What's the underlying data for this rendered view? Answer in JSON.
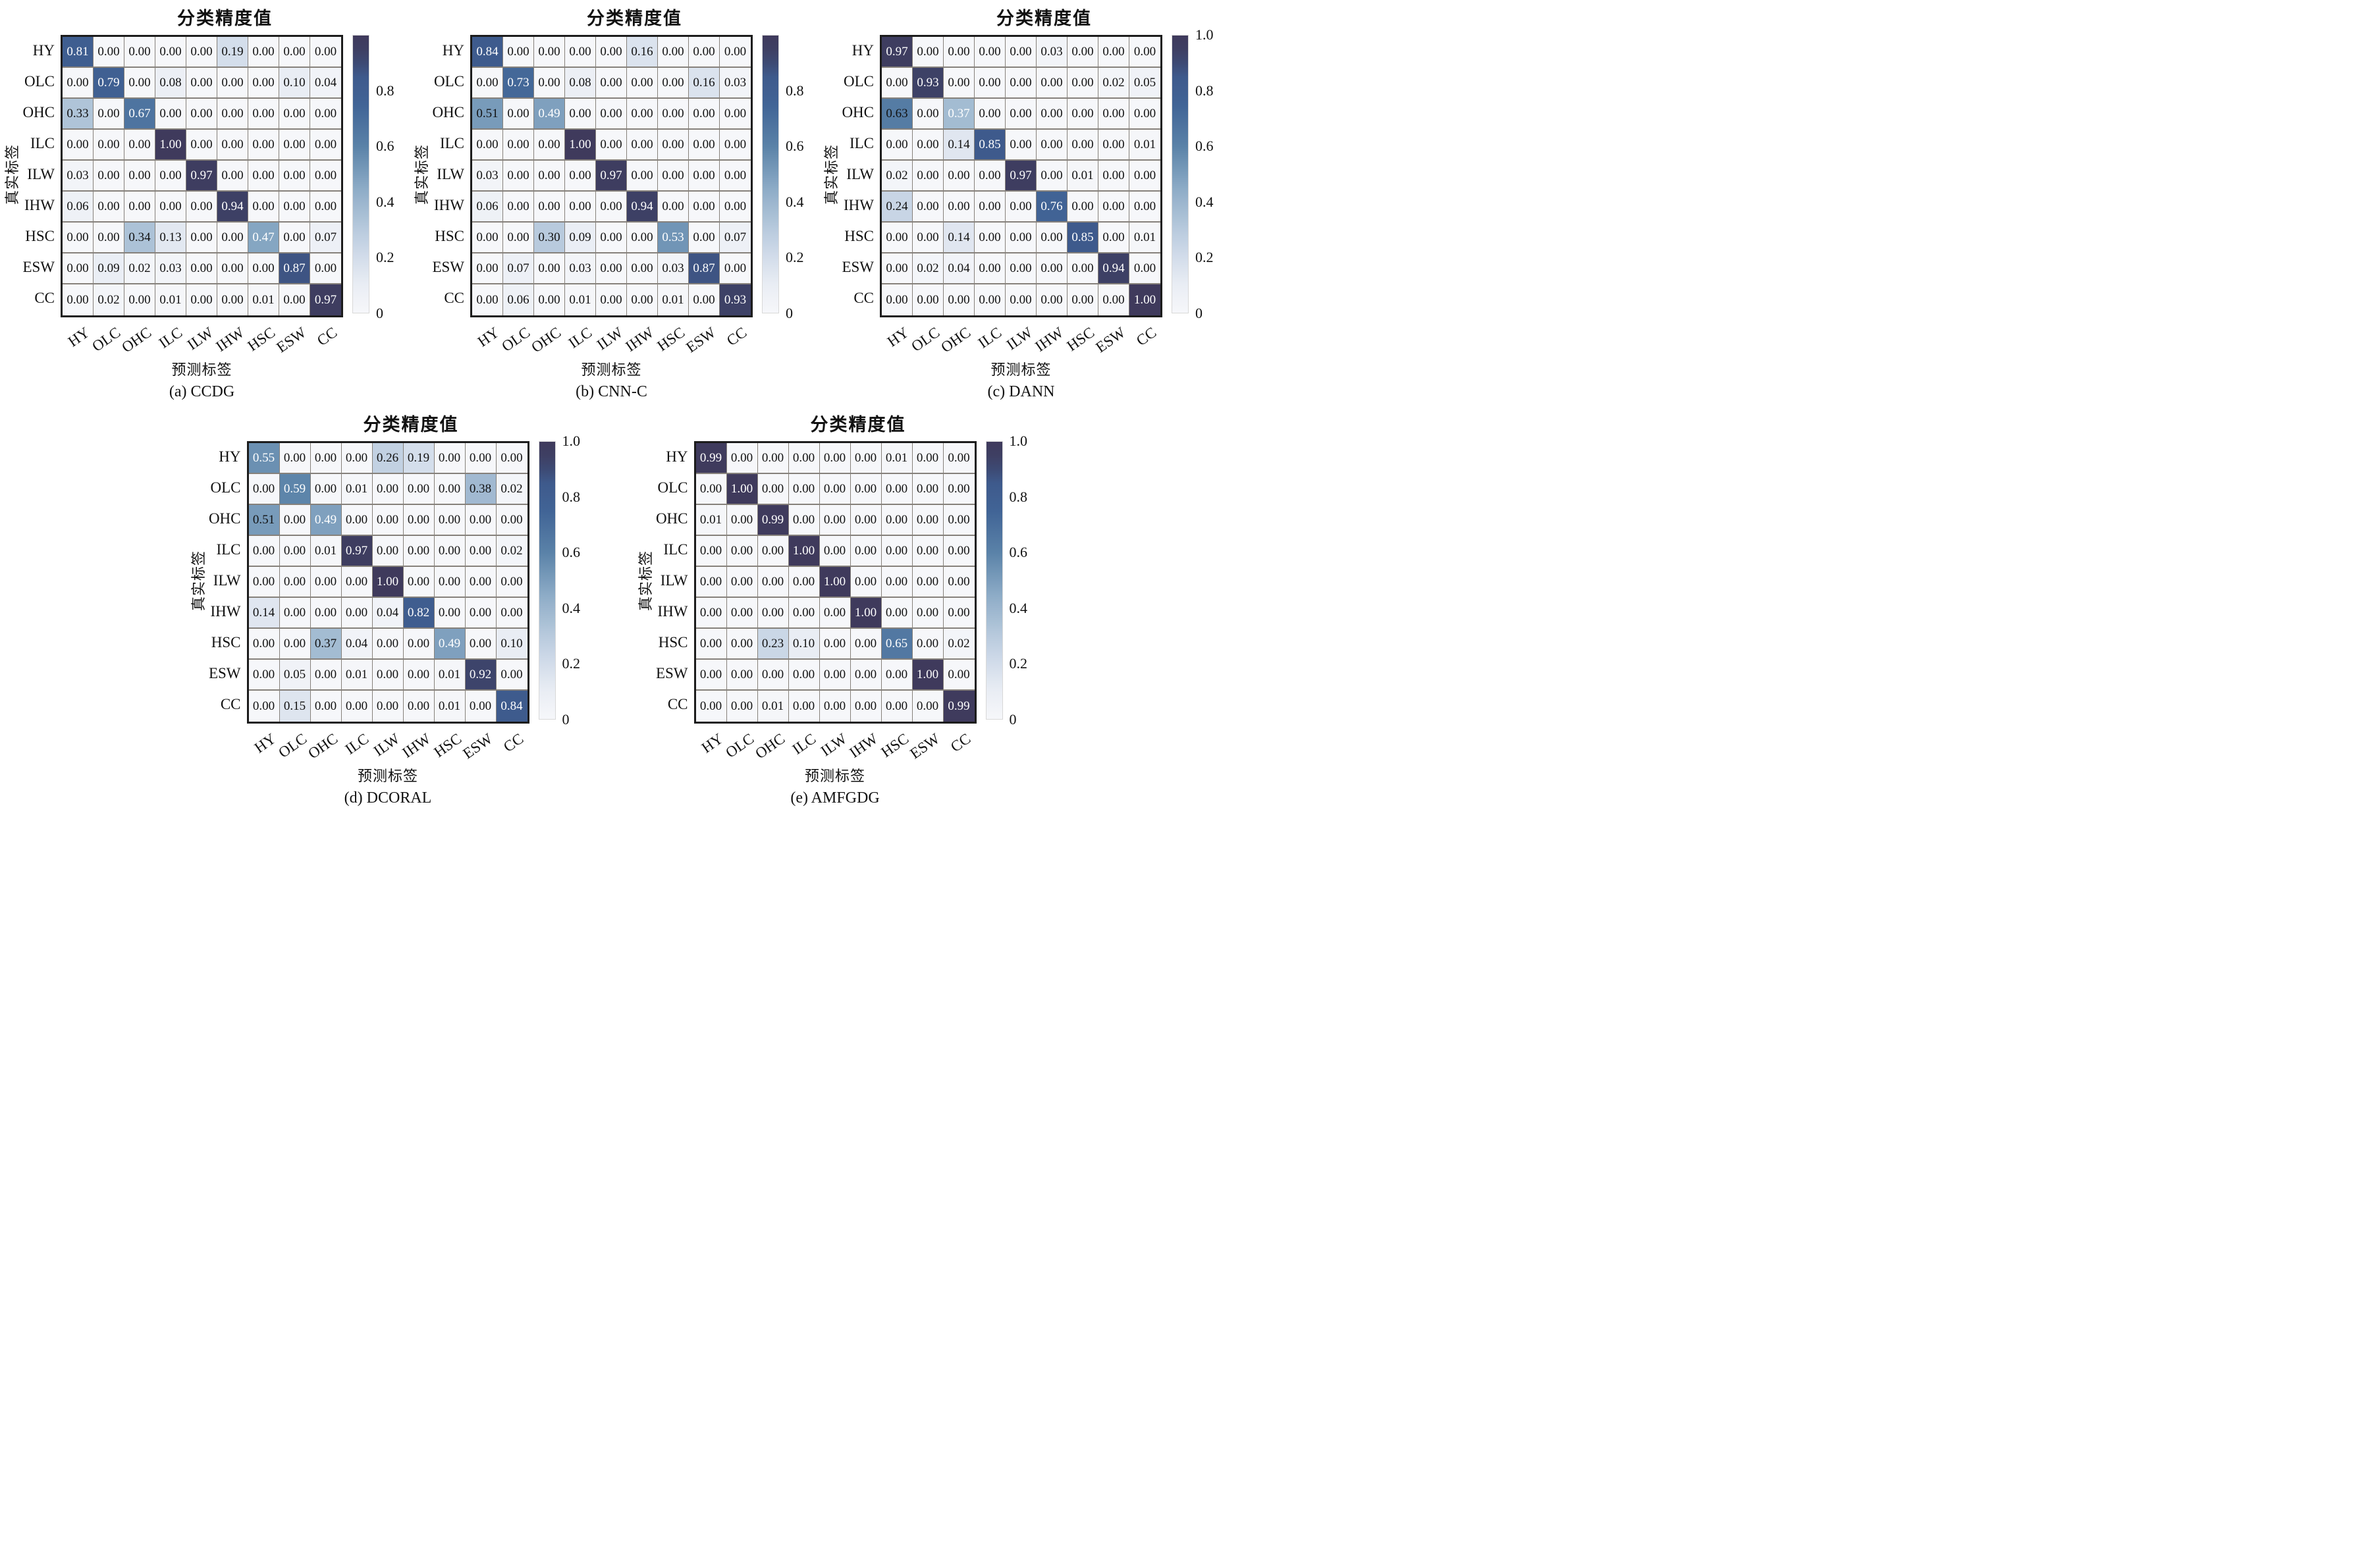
{
  "figure": {
    "colorbar_title": "分类精度值",
    "xlabel": "预测标签",
    "ylabel": "真实标签",
    "class_labels": [
      "HY",
      "OLC",
      "OHC",
      "ILC",
      "ILW",
      "IHW",
      "HSC",
      "ESW",
      "CC"
    ],
    "colors": {
      "cmap_stops": [
        [
          0.0,
          "#f6f7fa"
        ],
        [
          0.1,
          "#e9edf4"
        ],
        [
          0.2,
          "#d2dcea"
        ],
        [
          0.3,
          "#b8cadd"
        ],
        [
          0.45,
          "#8cabc6"
        ],
        [
          0.6,
          "#5a82a8"
        ],
        [
          0.75,
          "#416496"
        ],
        [
          0.85,
          "#3e5a8c"
        ],
        [
          0.93,
          "#3d4166"
        ],
        [
          1.0,
          "#3f3a5c"
        ]
      ],
      "grid_line": "#86817b",
      "outer_border": "#1c1c1c",
      "text_on_light": "#111111",
      "text_on_dark": "#ffffff"
    }
  },
  "chart_data": [
    {
      "type": "heatmap",
      "title": "分类精度值",
      "caption": "(a) CCDG",
      "method": "CCDG",
      "xlabel": "预测标签",
      "ylabel": "真实标签",
      "categories": [
        "HY",
        "OLC",
        "OHC",
        "ILC",
        "ILW",
        "IHW",
        "HSC",
        "ESW",
        "CC"
      ],
      "vmin": 0,
      "vmax": 1,
      "colorbar_ticks": [
        0.8,
        0.6,
        0.4,
        0.2,
        0
      ],
      "matrix": [
        [
          0.81,
          0.0,
          0.0,
          0.0,
          0.0,
          0.19,
          0.0,
          0.0,
          0.0
        ],
        [
          0.0,
          0.79,
          0.0,
          0.08,
          0.0,
          0.0,
          0.0,
          0.1,
          0.04
        ],
        [
          0.33,
          0.0,
          0.67,
          0.0,
          0.0,
          0.0,
          0.0,
          0.0,
          0.0
        ],
        [
          0.0,
          0.0,
          0.0,
          1.0,
          0.0,
          0.0,
          0.0,
          0.0,
          0.0
        ],
        [
          0.03,
          0.0,
          0.0,
          0.0,
          0.97,
          0.0,
          0.0,
          0.0,
          0.0
        ],
        [
          0.06,
          0.0,
          0.0,
          0.0,
          0.0,
          0.94,
          0.0,
          0.0,
          0.0
        ],
        [
          0.0,
          0.0,
          0.34,
          0.13,
          0.0,
          0.0,
          0.47,
          0.0,
          0.07
        ],
        [
          0.0,
          0.09,
          0.02,
          0.03,
          0.0,
          0.0,
          0.0,
          0.87,
          0.0
        ],
        [
          0.0,
          0.02,
          0.0,
          0.01,
          0.0,
          0.0,
          0.01,
          0.0,
          0.97
        ]
      ]
    },
    {
      "type": "heatmap",
      "title": "分类精度值",
      "caption": "(b) CNN-C",
      "method": "CNN-C",
      "xlabel": "预测标签",
      "ylabel": "真实标签",
      "categories": [
        "HY",
        "OLC",
        "OHC",
        "ILC",
        "ILW",
        "IHW",
        "HSC",
        "ESW",
        "CC"
      ],
      "vmin": 0,
      "vmax": 1,
      "colorbar_ticks": [
        0.8,
        0.6,
        0.4,
        0.2,
        0
      ],
      "matrix": [
        [
          0.84,
          0.0,
          0.0,
          0.0,
          0.0,
          0.16,
          0.0,
          0.0,
          0.0
        ],
        [
          0.0,
          0.73,
          0.0,
          0.08,
          0.0,
          0.0,
          0.0,
          0.16,
          0.03
        ],
        [
          0.51,
          0.0,
          0.49,
          0.0,
          0.0,
          0.0,
          0.0,
          0.0,
          0.0
        ],
        [
          0.0,
          0.0,
          0.0,
          1.0,
          0.0,
          0.0,
          0.0,
          0.0,
          0.0
        ],
        [
          0.03,
          0.0,
          0.0,
          0.0,
          0.97,
          0.0,
          0.0,
          0.0,
          0.0
        ],
        [
          0.06,
          0.0,
          0.0,
          0.0,
          0.0,
          0.94,
          0.0,
          0.0,
          0.0
        ],
        [
          0.0,
          0.0,
          0.3,
          0.09,
          0.0,
          0.0,
          0.53,
          0.0,
          0.07
        ],
        [
          0.0,
          0.07,
          0.0,
          0.03,
          0.0,
          0.0,
          0.03,
          0.87,
          0.0
        ],
        [
          0.0,
          0.06,
          0.0,
          0.01,
          0.0,
          0.0,
          0.01,
          0.0,
          0.93
        ]
      ]
    },
    {
      "type": "heatmap",
      "title": "分类精度值",
      "caption": "(c) DANN",
      "method": "DANN",
      "xlabel": "预测标签",
      "ylabel": "真实标签",
      "categories": [
        "HY",
        "OLC",
        "OHC",
        "ILC",
        "ILW",
        "IHW",
        "HSC",
        "ESW",
        "CC"
      ],
      "vmin": 0,
      "vmax": 1,
      "colorbar_ticks": [
        1.0,
        0.8,
        0.6,
        0.4,
        0.2,
        0
      ],
      "matrix": [
        [
          0.97,
          0.0,
          0.0,
          0.0,
          0.0,
          0.03,
          0.0,
          0.0,
          0.0
        ],
        [
          0.0,
          0.93,
          0.0,
          0.0,
          0.0,
          0.0,
          0.0,
          0.02,
          0.05
        ],
        [
          0.63,
          0.0,
          0.37,
          0.0,
          0.0,
          0.0,
          0.0,
          0.0,
          0.0
        ],
        [
          0.0,
          0.0,
          0.14,
          0.85,
          0.0,
          0.0,
          0.0,
          0.0,
          0.01
        ],
        [
          0.02,
          0.0,
          0.0,
          0.0,
          0.97,
          0.0,
          0.01,
          0.0,
          0.0
        ],
        [
          0.24,
          0.0,
          0.0,
          0.0,
          0.0,
          0.76,
          0.0,
          0.0,
          0.0
        ],
        [
          0.0,
          0.0,
          0.14,
          0.0,
          0.0,
          0.0,
          0.85,
          0.0,
          0.01
        ],
        [
          0.0,
          0.02,
          0.04,
          0.0,
          0.0,
          0.0,
          0.0,
          0.94,
          0.0
        ],
        [
          0.0,
          0.0,
          0.0,
          0.0,
          0.0,
          0.0,
          0.0,
          0.0,
          1.0
        ]
      ]
    },
    {
      "type": "heatmap",
      "title": "分类精度值",
      "caption": "(d) DCORAL",
      "method": "DCORAL",
      "xlabel": "预测标签",
      "ylabel": "真实标签",
      "categories": [
        "HY",
        "OLC",
        "OHC",
        "ILC",
        "ILW",
        "IHW",
        "HSC",
        "ESW",
        "CC"
      ],
      "vmin": 0,
      "vmax": 1,
      "colorbar_ticks": [
        1.0,
        0.8,
        0.6,
        0.4,
        0.2,
        0
      ],
      "matrix": [
        [
          0.55,
          0.0,
          0.0,
          0.0,
          0.26,
          0.19,
          0.0,
          0.0,
          0.0
        ],
        [
          0.0,
          0.59,
          0.0,
          0.01,
          0.0,
          0.0,
          0.0,
          0.38,
          0.02
        ],
        [
          0.51,
          0.0,
          0.49,
          0.0,
          0.0,
          0.0,
          0.0,
          0.0,
          0.0
        ],
        [
          0.0,
          0.0,
          0.01,
          0.97,
          0.0,
          0.0,
          0.0,
          0.0,
          0.02
        ],
        [
          0.0,
          0.0,
          0.0,
          0.0,
          1.0,
          0.0,
          0.0,
          0.0,
          0.0
        ],
        [
          0.14,
          0.0,
          0.0,
          0.0,
          0.04,
          0.82,
          0.0,
          0.0,
          0.0
        ],
        [
          0.0,
          0.0,
          0.37,
          0.04,
          0.0,
          0.0,
          0.49,
          0.0,
          0.1
        ],
        [
          0.0,
          0.05,
          0.0,
          0.01,
          0.0,
          0.0,
          0.01,
          0.92,
          0.0
        ],
        [
          0.0,
          0.15,
          0.0,
          0.0,
          0.0,
          0.0,
          0.01,
          0.0,
          0.84
        ]
      ]
    },
    {
      "type": "heatmap",
      "title": "分类精度值",
      "caption": "(e) AMFGDG",
      "method": "AMFGDG",
      "xlabel": "预测标签",
      "ylabel": "真实标签",
      "categories": [
        "HY",
        "OLC",
        "OHC",
        "ILC",
        "ILW",
        "IHW",
        "HSC",
        "ESW",
        "CC"
      ],
      "vmin": 0,
      "vmax": 1,
      "colorbar_ticks": [
        1.0,
        0.8,
        0.6,
        0.4,
        0.2,
        0
      ],
      "matrix": [
        [
          0.99,
          0.0,
          0.0,
          0.0,
          0.0,
          0.0,
          0.01,
          0.0,
          0.0
        ],
        [
          0.0,
          1.0,
          0.0,
          0.0,
          0.0,
          0.0,
          0.0,
          0.0,
          0.0
        ],
        [
          0.01,
          0.0,
          0.99,
          0.0,
          0.0,
          0.0,
          0.0,
          0.0,
          0.0
        ],
        [
          0.0,
          0.0,
          0.0,
          1.0,
          0.0,
          0.0,
          0.0,
          0.0,
          0.0
        ],
        [
          0.0,
          0.0,
          0.0,
          0.0,
          1.0,
          0.0,
          0.0,
          0.0,
          0.0
        ],
        [
          0.0,
          0.0,
          0.0,
          0.0,
          0.0,
          1.0,
          0.0,
          0.0,
          0.0
        ],
        [
          0.0,
          0.0,
          0.23,
          0.1,
          0.0,
          0.0,
          0.65,
          0.0,
          0.02
        ],
        [
          0.0,
          0.0,
          0.0,
          0.0,
          0.0,
          0.0,
          0.0,
          1.0,
          0.0
        ],
        [
          0.0,
          0.0,
          0.01,
          0.0,
          0.0,
          0.0,
          0.0,
          0.0,
          0.99
        ]
      ]
    }
  ]
}
